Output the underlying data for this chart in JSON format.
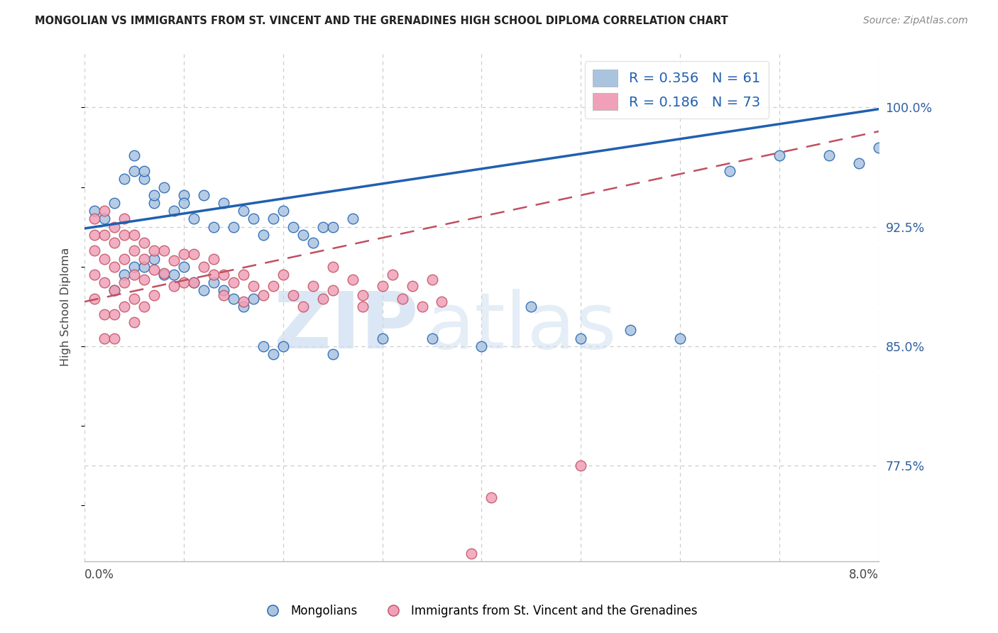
{
  "title": "MONGOLIAN VS IMMIGRANTS FROM ST. VINCENT AND THE GRENADINES HIGH SCHOOL DIPLOMA CORRELATION CHART",
  "source": "Source: ZipAtlas.com",
  "ylabel": "High School Diploma",
  "ytick_labels": [
    "77.5%",
    "85.0%",
    "92.5%",
    "100.0%"
  ],
  "ytick_values": [
    0.775,
    0.85,
    0.925,
    1.0
  ],
  "xmin": 0.0,
  "xmax": 0.08,
  "ymin": 0.715,
  "ymax": 1.035,
  "legend_label1": "Mongolians",
  "legend_label2": "Immigrants from St. Vincent and the Grenadines",
  "color_blue": "#aac4e0",
  "color_pink": "#f0a0b8",
  "line_blue": "#2060b0",
  "line_pink_dash": "#c05060",
  "watermark_zip": "ZIP",
  "watermark_atlas": "atlas",
  "blue_scatter_x": [
    0.001,
    0.002,
    0.003,
    0.004,
    0.005,
    0.005,
    0.006,
    0.006,
    0.007,
    0.007,
    0.008,
    0.009,
    0.01,
    0.01,
    0.011,
    0.012,
    0.013,
    0.014,
    0.015,
    0.016,
    0.017,
    0.018,
    0.019,
    0.02,
    0.021,
    0.022,
    0.023,
    0.024,
    0.025,
    0.027,
    0.003,
    0.004,
    0.005,
    0.006,
    0.007,
    0.008,
    0.009,
    0.01,
    0.011,
    0.012,
    0.013,
    0.014,
    0.015,
    0.016,
    0.017,
    0.018,
    0.019,
    0.02,
    0.025,
    0.03,
    0.035,
    0.04,
    0.045,
    0.05,
    0.055,
    0.06,
    0.065,
    0.07,
    0.075,
    0.078,
    0.08
  ],
  "blue_scatter_y": [
    0.935,
    0.93,
    0.94,
    0.955,
    0.96,
    0.97,
    0.955,
    0.96,
    0.94,
    0.945,
    0.95,
    0.935,
    0.945,
    0.94,
    0.93,
    0.945,
    0.925,
    0.94,
    0.925,
    0.935,
    0.93,
    0.92,
    0.93,
    0.935,
    0.925,
    0.92,
    0.915,
    0.925,
    0.925,
    0.93,
    0.885,
    0.895,
    0.9,
    0.9,
    0.905,
    0.895,
    0.895,
    0.9,
    0.89,
    0.885,
    0.89,
    0.885,
    0.88,
    0.875,
    0.88,
    0.85,
    0.845,
    0.85,
    0.845,
    0.855,
    0.855,
    0.85,
    0.875,
    0.855,
    0.86,
    0.855,
    0.96,
    0.97,
    0.97,
    0.965,
    0.975
  ],
  "pink_scatter_x": [
    0.001,
    0.001,
    0.001,
    0.001,
    0.001,
    0.002,
    0.002,
    0.002,
    0.002,
    0.002,
    0.002,
    0.003,
    0.003,
    0.003,
    0.003,
    0.003,
    0.003,
    0.004,
    0.004,
    0.004,
    0.004,
    0.004,
    0.005,
    0.005,
    0.005,
    0.005,
    0.005,
    0.006,
    0.006,
    0.006,
    0.006,
    0.007,
    0.007,
    0.007,
    0.008,
    0.008,
    0.009,
    0.009,
    0.01,
    0.01,
    0.011,
    0.011,
    0.012,
    0.013,
    0.013,
    0.014,
    0.014,
    0.015,
    0.016,
    0.016,
    0.017,
    0.018,
    0.019,
    0.02,
    0.021,
    0.022,
    0.023,
    0.024,
    0.025,
    0.025,
    0.027,
    0.028,
    0.028,
    0.03,
    0.031,
    0.032,
    0.033,
    0.034,
    0.035,
    0.036,
    0.039,
    0.041,
    0.05
  ],
  "pink_scatter_y": [
    0.93,
    0.92,
    0.91,
    0.895,
    0.88,
    0.935,
    0.92,
    0.905,
    0.89,
    0.87,
    0.855,
    0.925,
    0.915,
    0.9,
    0.885,
    0.87,
    0.855,
    0.93,
    0.92,
    0.905,
    0.89,
    0.875,
    0.92,
    0.91,
    0.895,
    0.88,
    0.865,
    0.915,
    0.905,
    0.892,
    0.875,
    0.91,
    0.898,
    0.882,
    0.91,
    0.896,
    0.904,
    0.888,
    0.908,
    0.89,
    0.908,
    0.89,
    0.9,
    0.895,
    0.905,
    0.895,
    0.882,
    0.89,
    0.895,
    0.878,
    0.888,
    0.882,
    0.888,
    0.895,
    0.882,
    0.875,
    0.888,
    0.88,
    0.9,
    0.885,
    0.892,
    0.875,
    0.882,
    0.888,
    0.895,
    0.88,
    0.888,
    0.875,
    0.892,
    0.878,
    0.72,
    0.755,
    0.775
  ]
}
